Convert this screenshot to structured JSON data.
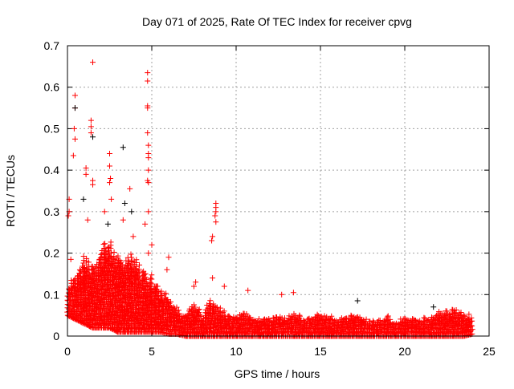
{
  "chart_data": {
    "type": "scatter",
    "title": "Day 071 of 2025, Rate Of TEC Index for receiver cpvg",
    "xlabel": "GPS time / hours",
    "ylabel": "ROTI / TECUs",
    "xlim": [
      0,
      25
    ],
    "ylim": [
      0,
      0.7
    ],
    "xticks": [
      "0",
      "5",
      "10",
      "15",
      "20",
      "25"
    ],
    "yticks": [
      "0",
      "0.1",
      "0.2",
      "0.3",
      "0.4",
      "0.5",
      "0.6",
      "0.7"
    ],
    "grid": true,
    "marker": "+",
    "colors": {
      "primary": "#ff0000",
      "secondary": "#000000",
      "grid": "#a0a0a0"
    },
    "dense_band": {
      "x": [
        0,
        0.5,
        1,
        1.5,
        2,
        2.5,
        3,
        3.5,
        4,
        4.5,
        5,
        5.5,
        6,
        6.5,
        7,
        7.5,
        8,
        8.5,
        9,
        9.5,
        10,
        10.5,
        11,
        11.5,
        12,
        12.5,
        13,
        13.5,
        14,
        14.5,
        15,
        15.5,
        16,
        16.5,
        17,
        17.5,
        18,
        18.5,
        19,
        19.5,
        20,
        20.5,
        21,
        21.5,
        22,
        22.5,
        23,
        23.5,
        24
      ],
      "ymin": [
        0.05,
        0.04,
        0.03,
        0.02,
        0.02,
        0.02,
        0.01,
        0.01,
        0.01,
        0.01,
        0.01,
        0.01,
        0.005,
        0.005,
        0,
        0,
        0,
        0,
        0,
        0,
        0,
        0,
        0,
        0,
        0,
        0,
        0,
        0,
        0,
        0,
        0,
        0,
        0,
        0,
        0,
        0,
        0,
        0,
        0,
        0,
        0,
        0,
        0,
        0,
        0,
        0,
        0,
        0,
        0.005
      ],
      "ymax": [
        0.14,
        0.15,
        0.2,
        0.18,
        0.22,
        0.26,
        0.2,
        0.22,
        0.2,
        0.16,
        0.15,
        0.12,
        0.1,
        0.07,
        0.06,
        0.09,
        0.05,
        0.1,
        0.08,
        0.06,
        0.05,
        0.06,
        0.05,
        0.045,
        0.05,
        0.05,
        0.05,
        0.06,
        0.045,
        0.05,
        0.06,
        0.05,
        0.045,
        0.05,
        0.06,
        0.05,
        0.04,
        0.045,
        0.05,
        0.04,
        0.05,
        0.045,
        0.045,
        0.05,
        0.06,
        0.07,
        0.07,
        0.06,
        0.05
      ]
    },
    "series": [
      {
        "name": "outliers-red",
        "color": "#ff0000",
        "points": [
          [
            1.5,
            0.66
          ],
          [
            4.75,
            0.635
          ],
          [
            4.75,
            0.615
          ],
          [
            0.45,
            0.58
          ],
          [
            0.45,
            0.55
          ],
          [
            0.4,
            0.5
          ],
          [
            0.45,
            0.475
          ],
          [
            1.4,
            0.52
          ],
          [
            1.4,
            0.505
          ],
          [
            1.4,
            0.49
          ],
          [
            4.75,
            0.555
          ],
          [
            4.75,
            0.55
          ],
          [
            4.75,
            0.49
          ],
          [
            4.8,
            0.46
          ],
          [
            4.8,
            0.44
          ],
          [
            4.8,
            0.43
          ],
          [
            0.35,
            0.435
          ],
          [
            1.1,
            0.405
          ],
          [
            1.1,
            0.39
          ],
          [
            1.5,
            0.375
          ],
          [
            1.5,
            0.365
          ],
          [
            2.5,
            0.44
          ],
          [
            2.5,
            0.41
          ],
          [
            2.55,
            0.38
          ],
          [
            2.5,
            0.37
          ],
          [
            4.8,
            0.4
          ],
          [
            4.75,
            0.375
          ],
          [
            4.8,
            0.37
          ],
          [
            3.7,
            0.355
          ],
          [
            2.6,
            0.33
          ],
          [
            0.1,
            0.33
          ],
          [
            0.1,
            0.3
          ],
          [
            0.05,
            0.29
          ],
          [
            8.8,
            0.32
          ],
          [
            8.8,
            0.31
          ],
          [
            8.8,
            0.3
          ],
          [
            8.75,
            0.29
          ],
          [
            8.8,
            0.275
          ],
          [
            8.6,
            0.24
          ],
          [
            8.55,
            0.23
          ],
          [
            4.8,
            0.3
          ],
          [
            4.6,
            0.27
          ],
          [
            5.0,
            0.22
          ],
          [
            6.0,
            0.19
          ],
          [
            4.8,
            0.2
          ],
          [
            12.7,
            0.1
          ],
          [
            13.4,
            0.105
          ],
          [
            10.7,
            0.11
          ],
          [
            9.3,
            0.12
          ],
          [
            1.2,
            0.28
          ],
          [
            2.2,
            0.3
          ],
          [
            3.3,
            0.28
          ],
          [
            0.2,
            0.185
          ],
          [
            7.5,
            0.12
          ],
          [
            7.6,
            0.13
          ],
          [
            8.6,
            0.14
          ],
          [
            5.9,
            0.16
          ],
          [
            3.9,
            0.24
          ]
        ]
      },
      {
        "name": "outliers-black",
        "color": "#000000",
        "points": [
          [
            3.4,
            0.32
          ],
          [
            3.3,
            0.455
          ],
          [
            0.95,
            0.33
          ],
          [
            0.45,
            0.55
          ],
          [
            1.5,
            0.48
          ],
          [
            17.2,
            0.085
          ],
          [
            21.7,
            0.07
          ],
          [
            2.4,
            0.27
          ],
          [
            3.8,
            0.3
          ]
        ]
      }
    ]
  }
}
